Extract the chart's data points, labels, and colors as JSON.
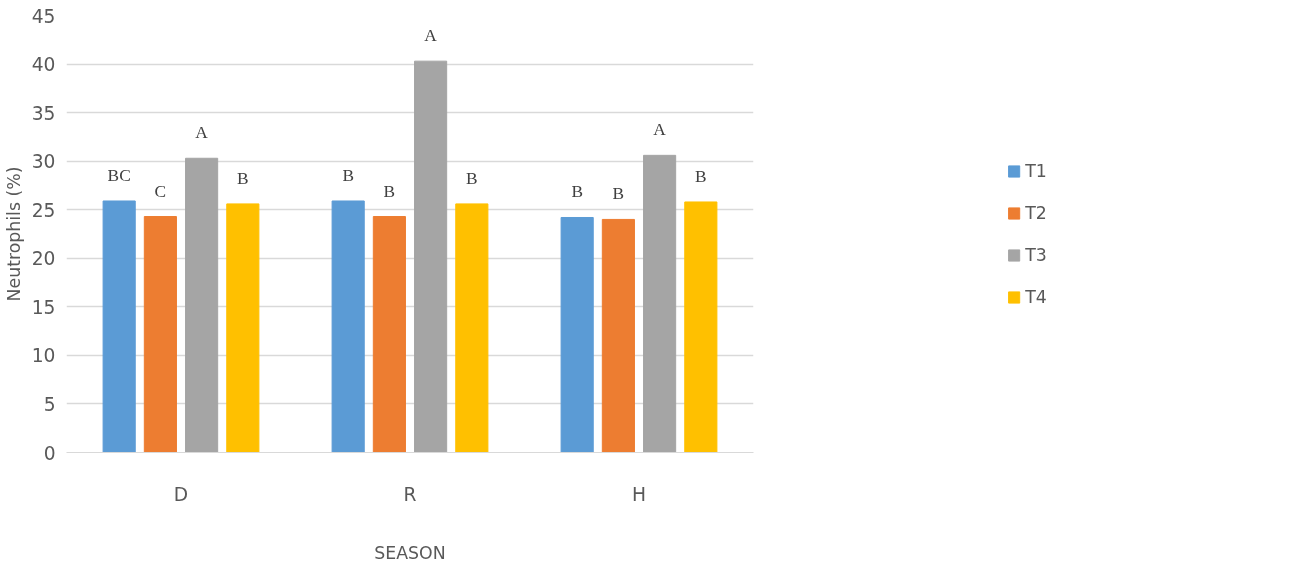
{
  "chart_data": {
    "type": "bar",
    "ylabel": "Neutrophils (%)",
    "xlabel": "SEASON",
    "categories": [
      "D",
      "R",
      "H"
    ],
    "series": [
      {
        "name": "T1",
        "color": "#5b9bd5",
        "values": [
          25.9,
          25.9,
          24.2
        ],
        "value_labels": [
          "BC",
          "B",
          "B"
        ]
      },
      {
        "name": "T2",
        "color": "#ed7d31",
        "values": [
          24.3,
          24.3,
          24.0
        ],
        "value_labels": [
          "C",
          "B",
          "B"
        ]
      },
      {
        "name": "T3",
        "color": "#a5a5a5",
        "values": [
          30.3,
          40.3,
          30.6
        ],
        "value_labels": [
          "A",
          "A",
          "A"
        ]
      },
      {
        "name": "T4",
        "color": "#ffc000",
        "values": [
          25.6,
          25.6,
          25.8
        ],
        "value_labels": [
          "B",
          "B",
          "B"
        ]
      }
    ],
    "ylim": [
      0,
      45
    ],
    "yticks": [
      0,
      5,
      10,
      15,
      20,
      25,
      30,
      35,
      40,
      45
    ],
    "grid": "y",
    "legend": "right"
  }
}
